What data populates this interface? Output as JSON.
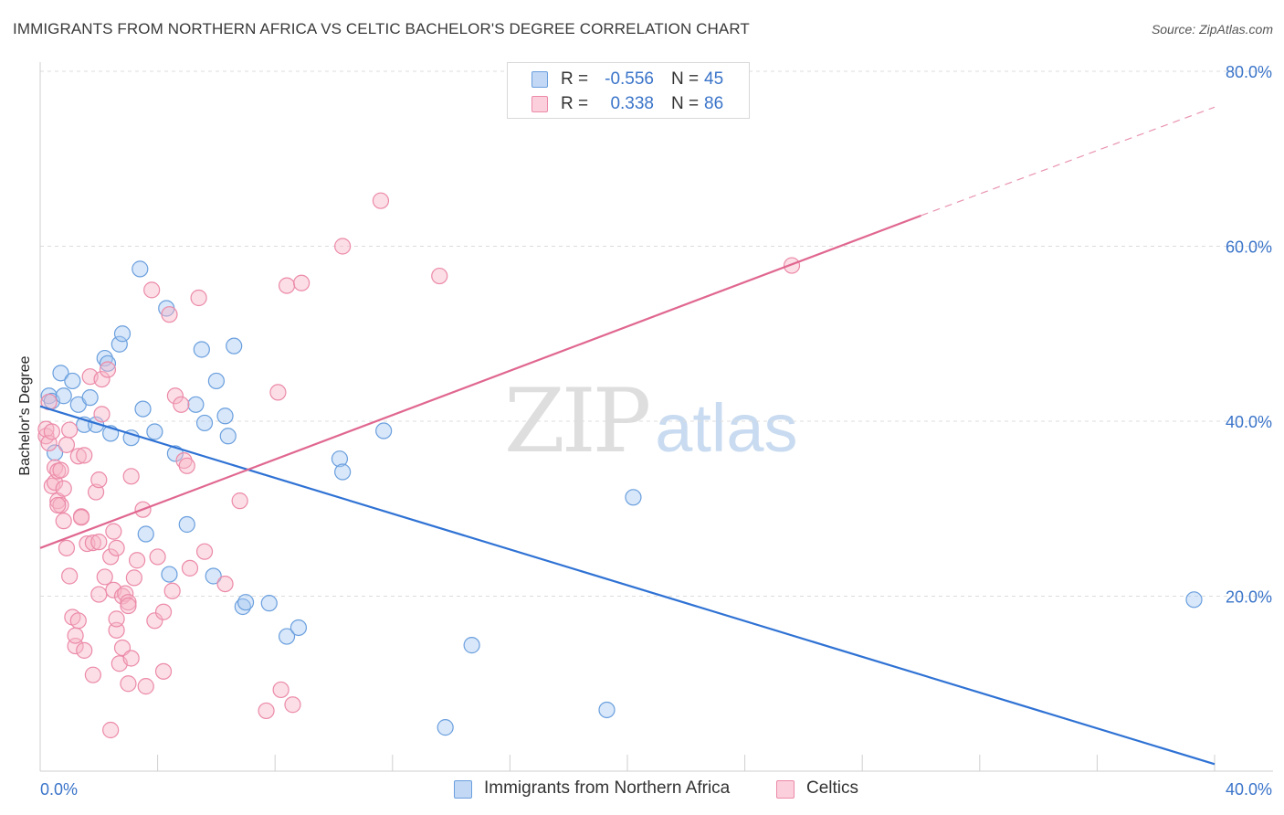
{
  "header": {
    "title": "IMMIGRANTS FROM NORTHERN AFRICA VS CELTIC BACHELOR'S DEGREE CORRELATION CHART",
    "source": "Source: ZipAtlas.com"
  },
  "watermark": {
    "zip": "ZIP",
    "atlas": "atlas"
  },
  "legend_top": {
    "rows": [
      {
        "r_label": "R =",
        "r_value": "-0.556",
        "n_label": "N =",
        "n_value": "45",
        "color": "#a9c9f1"
      },
      {
        "r_label": "R =",
        "r_value": "0.338",
        "n_label": "N =",
        "n_value": "86",
        "color": "#f6b6c8"
      }
    ]
  },
  "legend_bottom": {
    "items": [
      {
        "label": "Immigrants from Northern Africa",
        "color": "#a9c9f1"
      },
      {
        "label": "Celtics",
        "color": "#f6b6c8"
      }
    ]
  },
  "chart_data": {
    "type": "scatter",
    "title": "IMMIGRANTS FROM NORTHERN AFRICA VS CELTIC BACHELOR'S DEGREE CORRELATION CHART",
    "xlabel": "",
    "ylabel": "Bachelor's Degree",
    "xlim": [
      0,
      40
    ],
    "ylim": [
      0,
      80
    ],
    "x_tick_labels": [
      "0.0%",
      "40.0%"
    ],
    "y_ticks": [
      20,
      40,
      60,
      80
    ],
    "y_tick_labels": [
      "20.0%",
      "40.0%",
      "60.0%",
      "80.0%"
    ],
    "grid": true,
    "legend_position": "top-center",
    "series": [
      {
        "name": "Immigrants from Northern Africa",
        "color": "#a9c9f1",
        "stroke": "#6a9fde",
        "line_color": "#2f72d4",
        "trend": {
          "x": [
            0,
            40
          ],
          "y": [
            41.7,
            0.8
          ],
          "dashed_after": null
        },
        "points": [
          [
            0.3,
            42.9
          ],
          [
            0.4,
            42.3
          ],
          [
            0.5,
            36.4
          ],
          [
            0.7,
            45.5
          ],
          [
            0.8,
            42.9
          ],
          [
            1.1,
            44.6
          ],
          [
            1.3,
            41.9
          ],
          [
            1.5,
            39.6
          ],
          [
            1.7,
            42.7
          ],
          [
            1.9,
            39.6
          ],
          [
            2.2,
            47.2
          ],
          [
            2.3,
            46.6
          ],
          [
            2.4,
            38.6
          ],
          [
            2.7,
            48.8
          ],
          [
            2.8,
            50.0
          ],
          [
            3.1,
            38.1
          ],
          [
            3.4,
            57.4
          ],
          [
            3.5,
            41.4
          ],
          [
            3.6,
            27.1
          ],
          [
            3.9,
            38.8
          ],
          [
            4.3,
            52.9
          ],
          [
            4.4,
            22.5
          ],
          [
            4.6,
            36.3
          ],
          [
            5.0,
            28.2
          ],
          [
            5.3,
            41.9
          ],
          [
            5.5,
            48.2
          ],
          [
            5.6,
            39.8
          ],
          [
            5.9,
            22.3
          ],
          [
            6.0,
            44.6
          ],
          [
            6.3,
            40.6
          ],
          [
            6.4,
            38.3
          ],
          [
            6.6,
            48.6
          ],
          [
            6.9,
            18.8
          ],
          [
            7.0,
            19.3
          ],
          [
            7.8,
            19.2
          ],
          [
            8.4,
            15.4
          ],
          [
            8.8,
            16.4
          ],
          [
            10.2,
            35.7
          ],
          [
            10.3,
            34.2
          ],
          [
            11.7,
            38.9
          ],
          [
            13.8,
            5.0
          ],
          [
            14.7,
            14.4
          ],
          [
            19.3,
            7.0
          ],
          [
            20.2,
            31.3
          ],
          [
            39.3,
            19.6
          ]
        ]
      },
      {
        "name": "Celtics",
        "color": "#f6b6c8",
        "stroke": "#ec8aa8",
        "line_color": "#e06790",
        "trend": {
          "x": [
            0,
            30
          ],
          "y": [
            25.5,
            63.5
          ],
          "dashed_to": [
            40,
            75.9
          ]
        },
        "points": [
          [
            0.2,
            38.3
          ],
          [
            0.2,
            39.1
          ],
          [
            0.3,
            37.5
          ],
          [
            0.3,
            42.2
          ],
          [
            0.4,
            32.6
          ],
          [
            0.5,
            33.0
          ],
          [
            0.5,
            34.7
          ],
          [
            0.6,
            30.9
          ],
          [
            0.6,
            34.3
          ],
          [
            0.7,
            30.4
          ],
          [
            0.8,
            32.3
          ],
          [
            0.8,
            28.6
          ],
          [
            0.9,
            25.5
          ],
          [
            0.9,
            37.3
          ],
          [
            1.0,
            39.0
          ],
          [
            1.0,
            22.3
          ],
          [
            1.1,
            17.6
          ],
          [
            1.2,
            14.3
          ],
          [
            1.2,
            15.5
          ],
          [
            1.3,
            17.2
          ],
          [
            1.3,
            36.0
          ],
          [
            1.4,
            29.1
          ],
          [
            1.5,
            13.8
          ],
          [
            1.5,
            36.1
          ],
          [
            1.6,
            26.0
          ],
          [
            1.7,
            45.1
          ],
          [
            1.8,
            26.1
          ],
          [
            1.8,
            11.0
          ],
          [
            1.9,
            31.9
          ],
          [
            2.0,
            20.2
          ],
          [
            2.0,
            33.3
          ],
          [
            2.1,
            44.8
          ],
          [
            2.1,
            40.8
          ],
          [
            2.2,
            22.2
          ],
          [
            2.3,
            45.9
          ],
          [
            2.4,
            24.5
          ],
          [
            2.5,
            20.7
          ],
          [
            2.5,
            27.4
          ],
          [
            2.6,
            16.1
          ],
          [
            2.6,
            25.5
          ],
          [
            2.6,
            17.4
          ],
          [
            2.7,
            12.3
          ],
          [
            2.8,
            14.1
          ],
          [
            2.8,
            20.0
          ],
          [
            2.9,
            20.3
          ],
          [
            3.0,
            19.3
          ],
          [
            3.0,
            10.0
          ],
          [
            3.1,
            12.9
          ],
          [
            3.1,
            33.7
          ],
          [
            3.2,
            22.1
          ],
          [
            3.3,
            24.1
          ],
          [
            3.5,
            29.9
          ],
          [
            3.8,
            55.0
          ],
          [
            3.9,
            17.2
          ],
          [
            4.0,
            24.5
          ],
          [
            4.2,
            11.4
          ],
          [
            4.2,
            18.2
          ],
          [
            4.4,
            52.2
          ],
          [
            4.5,
            20.6
          ],
          [
            4.6,
            42.9
          ],
          [
            4.8,
            41.9
          ],
          [
            4.9,
            35.5
          ],
          [
            5.0,
            34.9
          ],
          [
            5.1,
            23.2
          ],
          [
            5.4,
            54.1
          ],
          [
            5.6,
            25.1
          ],
          [
            6.3,
            21.4
          ],
          [
            6.8,
            30.9
          ],
          [
            7.7,
            6.9
          ],
          [
            8.1,
            43.3
          ],
          [
            8.2,
            9.3
          ],
          [
            8.4,
            55.5
          ],
          [
            8.6,
            7.6
          ],
          [
            8.9,
            55.8
          ],
          [
            10.3,
            60.0
          ],
          [
            11.6,
            65.2
          ],
          [
            13.6,
            56.6
          ],
          [
            25.6,
            57.8
          ],
          [
            3.0,
            18.9
          ],
          [
            1.4,
            29.0
          ],
          [
            0.4,
            38.8
          ],
          [
            2.0,
            26.2
          ],
          [
            0.7,
            34.4
          ],
          [
            3.6,
            9.7
          ],
          [
            2.4,
            4.7
          ],
          [
            0.6,
            30.4
          ]
        ]
      }
    ]
  }
}
